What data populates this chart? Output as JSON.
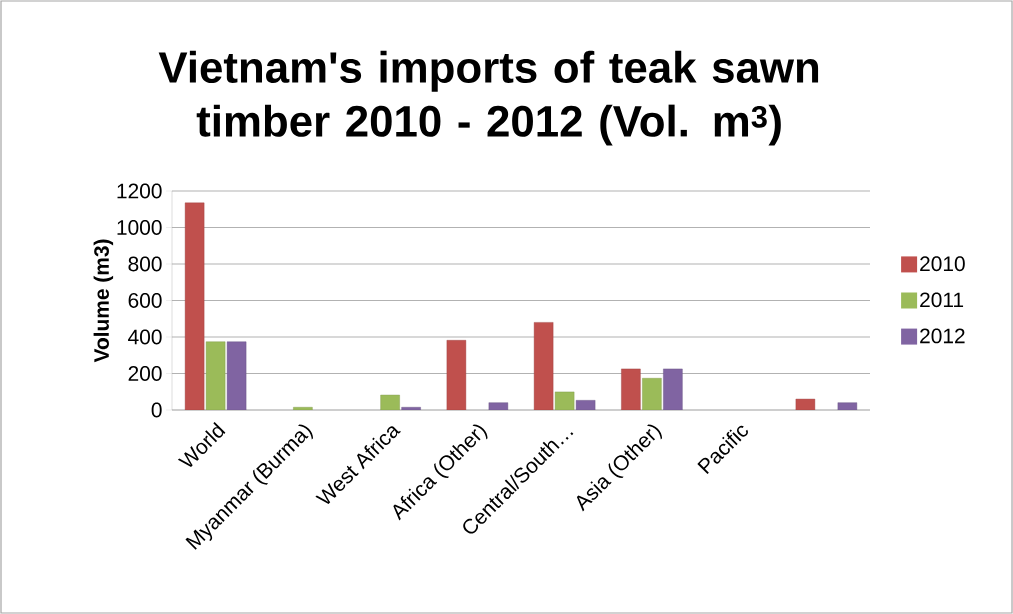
{
  "chart_data": {
    "type": "bar",
    "title": "Vietnam's imports of teak sawn timber 2010 - 2012 (Vol. m$^{3}$)",
    "ylabel": "Volume (m3)",
    "categories": [
      "World",
      "Myanmar (Burma)",
      "West Africa",
      "Africa (Other)",
      "Central/South…",
      "Asia (Other)",
      "Pacific",
      null
    ],
    "series": [
      {
        "name": "2010",
        "color": "#c0504d",
        "values": [
          1135,
          null,
          null,
          382,
          480,
          225,
          null,
          60
        ]
      },
      {
        "name": "2011",
        "color": "#9bbb59",
        "values": [
          374,
          15,
          82,
          null,
          99,
          174,
          null,
          null
        ]
      },
      {
        "name": "2012",
        "color": "#8064a2",
        "values": [
          374,
          null,
          15,
          40,
          53,
          225,
          null,
          40
        ]
      }
    ],
    "ylim": [
      0,
      1200
    ],
    "yticks": [
      0,
      200,
      400,
      600,
      800,
      1000,
      1200
    ],
    "grid": "y",
    "legend": "right"
  }
}
